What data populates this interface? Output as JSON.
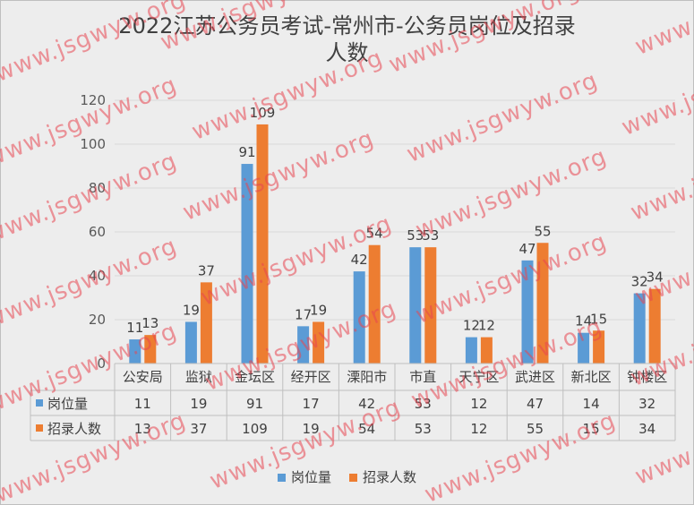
{
  "chart_data": {
    "type": "bar",
    "title": "2022江苏公务员考试-常州市-公务员岗位及招录人数",
    "categories": [
      "公安局",
      "监狱",
      "金坛区",
      "经开区",
      "溧阳市",
      "市直",
      "天宁区",
      "武进区",
      "新北区",
      "钟楼区"
    ],
    "series": [
      {
        "name": "岗位量",
        "values": [
          11,
          19,
          91,
          17,
          42,
          53,
          12,
          47,
          14,
          32
        ],
        "color": "#5b9bd5"
      },
      {
        "name": "招录人数",
        "values": [
          13,
          37,
          109,
          19,
          54,
          53,
          12,
          55,
          15,
          34
        ],
        "color": "#ed7d31"
      }
    ],
    "ylim": [
      0,
      120
    ],
    "yticks": [
      0,
      20,
      40,
      60,
      80,
      100,
      120
    ],
    "grid": true,
    "legend": "bottom",
    "data_table": true
  },
  "watermark": "www.jsgwyw.org"
}
